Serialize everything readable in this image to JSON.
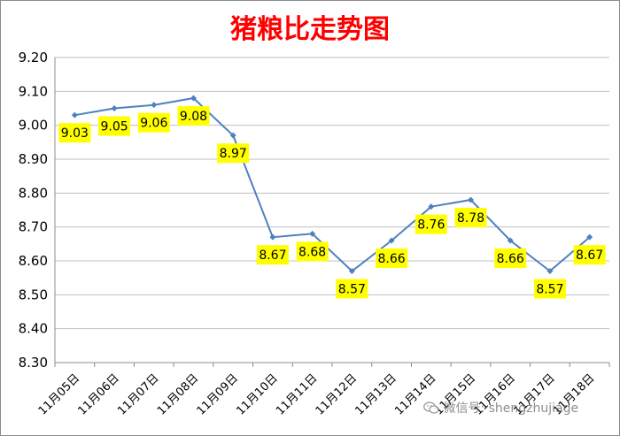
{
  "chart_data": {
    "type": "line",
    "title": "猪粮比走势图",
    "xlabel": "",
    "ylabel": "",
    "categories": [
      "11月05日",
      "11月06日",
      "11月07日",
      "11月08日",
      "11月09日",
      "11月10日",
      "11月11日",
      "11月12日",
      "11月13日",
      "11月14日",
      "11月15日",
      "11月16日",
      "11月17日",
      "11月18日"
    ],
    "series": [
      {
        "values": [
          9.03,
          9.05,
          9.06,
          9.08,
          8.97,
          8.67,
          8.68,
          8.57,
          8.66,
          8.76,
          8.78,
          8.66,
          8.57,
          8.67
        ]
      }
    ],
    "data_labels": [
      "9.03",
      "9.05",
      "9.06",
      "9.08",
      "8.97",
      "8.67",
      "8.68",
      "8.57",
      "8.66",
      "8.76",
      "8.78",
      "8.66",
      "8.57",
      "8.67"
    ],
    "ylim": [
      8.3,
      9.2
    ],
    "yticks": [
      "8.30",
      "8.40",
      "8.50",
      "8.60",
      "8.70",
      "8.80",
      "8.90",
      "9.00",
      "9.10",
      "9.20"
    ],
    "grid": true,
    "legend": "none",
    "line_color": "#4f81bd",
    "label_bg_color": "#ffff00",
    "grid_color": "#c0c0c0"
  },
  "watermark": {
    "icon": "wechat-icon",
    "text": "微信号: shengzhujiage"
  }
}
